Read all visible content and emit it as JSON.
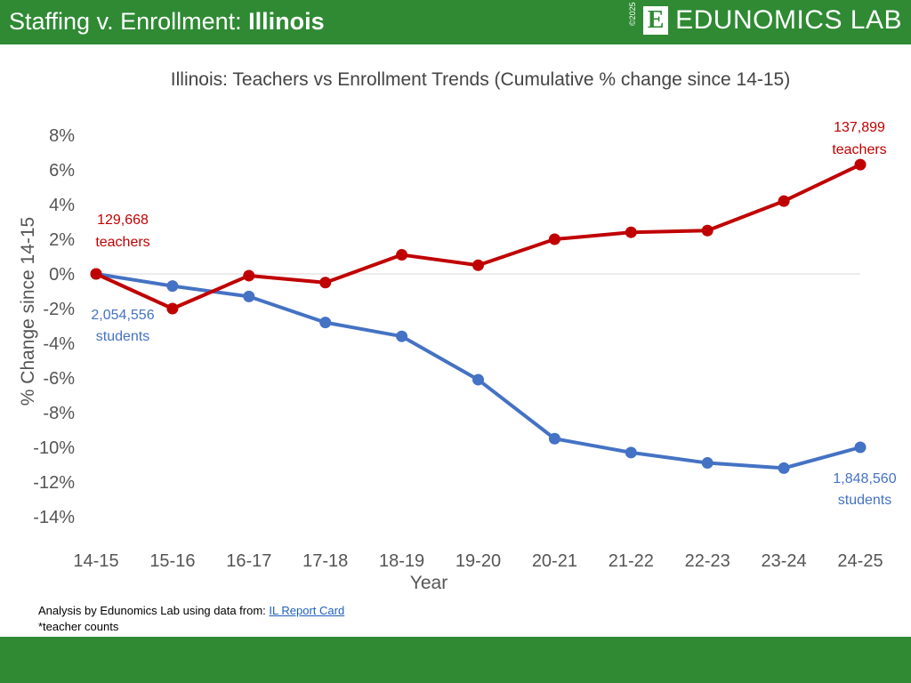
{
  "header": {
    "title_prefix": "Staffing v. Enrollment: ",
    "title_state": "Illinois",
    "logo_copyright": "©2025",
    "logo_letter": "E",
    "logo_name": "EDUNOMICS LAB"
  },
  "footer": {
    "source_prefix": "Analysis by Edunomics Lab using data from: ",
    "source_link": "IL Report Card",
    "footnote": "*teacher counts"
  },
  "colors": {
    "brand_green": "#2f8a33",
    "teachers": "#c00000",
    "students": "#4472c4"
  },
  "chart_data": {
    "type": "line",
    "title": "Illinois: Teachers vs Enrollment Trends (Cumulative % change since 14-15)",
    "xlabel": "Year",
    "ylabel": "% Change since 14-15",
    "categories": [
      "14-15",
      "15-16",
      "16-17",
      "17-18",
      "18-19",
      "19-20",
      "20-21",
      "21-22",
      "22-23",
      "23-24",
      "24-25"
    ],
    "ylim": [
      -14,
      8
    ],
    "yticks": [
      "8%",
      "6%",
      "4%",
      "2%",
      "0%",
      "-2%",
      "-4%",
      "-6%",
      "-8%",
      "-10%",
      "-12%",
      "-14%"
    ],
    "grid": false,
    "series": [
      {
        "key": "teachers",
        "values": [
          0,
          -2.0,
          -0.1,
          -0.5,
          1.1,
          0.5,
          2.0,
          2.4,
          2.5,
          4.2,
          6.3
        ]
      },
      {
        "key": "students",
        "values": [
          0,
          -0.7,
          -1.3,
          -2.8,
          -3.6,
          -6.1,
          -9.5,
          -10.3,
          -10.9,
          -11.2,
          -10.0
        ]
      }
    ],
    "annotations": {
      "teachers_start": {
        "count": "129,668",
        "unit": "teachers"
      },
      "students_start": {
        "count": "2,054,556",
        "unit": "students"
      },
      "teachers_end": {
        "count": "137,899",
        "unit": "teachers"
      },
      "students_end": {
        "count": "1,848,560",
        "unit": "students"
      }
    }
  }
}
